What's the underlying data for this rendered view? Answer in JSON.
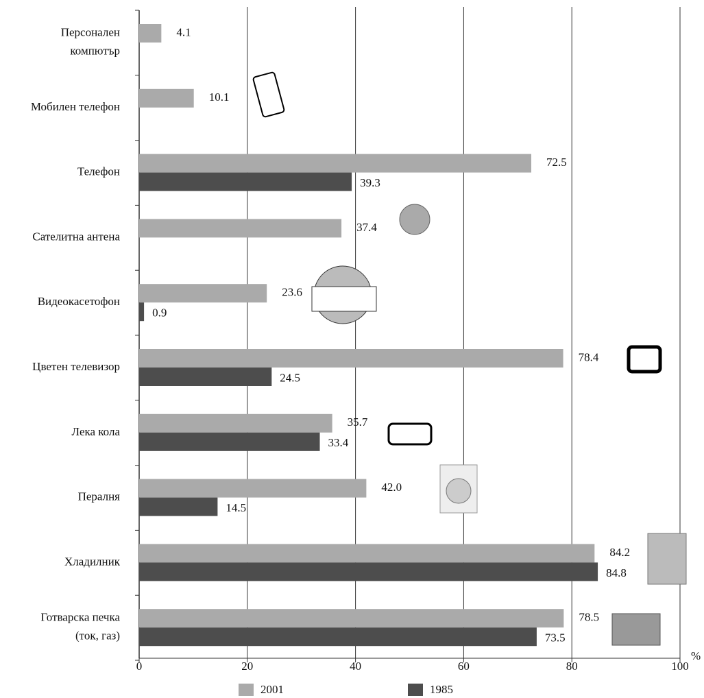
{
  "chart_data": {
    "type": "bar",
    "orientation": "horizontal",
    "categories": [
      "Персонален\nкомпютър",
      "Мобилен телефон",
      "Телефон",
      "Сателитна антена",
      "Видеокасетофон",
      "Цветен телевизор",
      "Лека кола",
      "Пералня",
      "Хладилник",
      "Готварска печка\n(ток, газ)"
    ],
    "series": [
      {
        "name": "2001",
        "color": "#aaaaaa",
        "values": [
          4.1,
          10.1,
          72.5,
          37.4,
          23.6,
          78.4,
          35.7,
          42.0,
          84.2,
          78.5
        ],
        "value_labels": [
          "4.1",
          "10.1",
          "72.5",
          "37.4",
          "23.6",
          "78.4",
          "35.7",
          "42.0",
          "84.2",
          "78.5"
        ]
      },
      {
        "name": "1985",
        "color": "#4d4d4d",
        "values": [
          null,
          null,
          39.3,
          null,
          0.9,
          24.5,
          33.4,
          14.5,
          84.8,
          73.5
        ],
        "value_labels": [
          null,
          null,
          "39.3",
          null,
          "0.9",
          "24.5",
          "33.4",
          "14.5",
          "84.8",
          "73.5"
        ]
      }
    ],
    "xlim": [
      0,
      100
    ],
    "xticks": [
      0,
      20,
      40,
      60,
      80,
      100
    ],
    "xlabel": "%",
    "grid": true
  }
}
